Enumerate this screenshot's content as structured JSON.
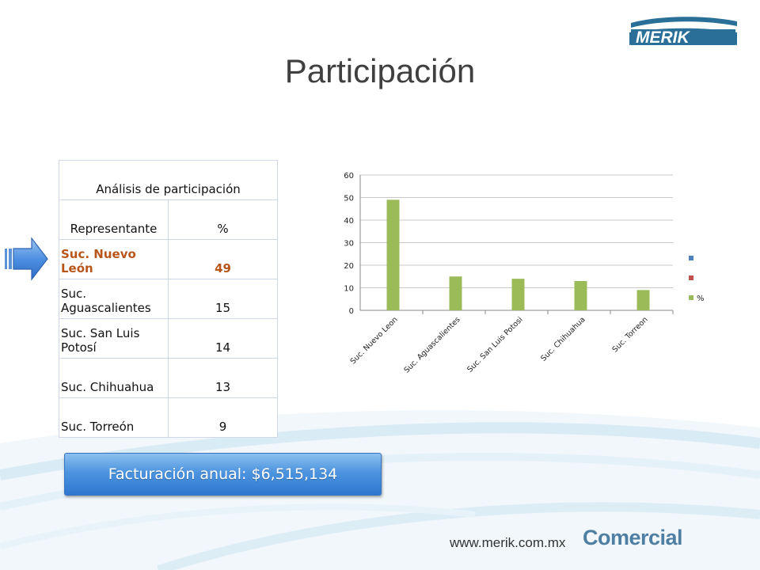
{
  "slide": {
    "title": "Participación",
    "logo_text": "MERIK",
    "website": "www.merik.com.mx",
    "department": "Comercial",
    "accent_color": "#4d94df",
    "highlight_color": "#b8561a"
  },
  "table": {
    "caption": "Análisis de participación",
    "col_name": "Representante",
    "col_pct": "%",
    "rows": [
      {
        "name": "Suc. Nuevo León",
        "pct": "49"
      },
      {
        "name": "Suc. Aguascalientes",
        "pct": "15"
      },
      {
        "name": "Suc. San Luis Potosí",
        "pct": "14"
      },
      {
        "name": "Suc. Chihuahua",
        "pct": "13"
      },
      {
        "name": "Suc. Torreón",
        "pct": "9"
      }
    ],
    "highlighted_row": 0
  },
  "banner": {
    "label": "Facturación anual: $6,515,134"
  },
  "chart_data": {
    "type": "bar",
    "categories": [
      "Suc. Nuevo Leon",
      "Suc. Aguascalientes",
      "Suc. San Luis Potosi",
      "Suc. Chihuahua",
      "Suc. Torreon"
    ],
    "series": [
      {
        "values": [
          null,
          null,
          null,
          null,
          null
        ],
        "color": "#4f81bd"
      },
      {
        "values": [
          null,
          null,
          null,
          null,
          null
        ],
        "color": "#c0504d"
      },
      {
        "name": "%",
        "values": [
          49,
          15,
          14,
          13,
          9
        ],
        "color": "#9bbb59"
      }
    ],
    "legend": [
      {
        "label": "",
        "color": "#4f81bd"
      },
      {
        "label": "",
        "color": "#c0504d"
      },
      {
        "label": "%",
        "color": "#9bbb59"
      }
    ],
    "ylim": [
      0,
      60
    ],
    "yticks": [
      0,
      10,
      20,
      30,
      40,
      50,
      60
    ],
    "grid": true,
    "legend_position": "right"
  }
}
